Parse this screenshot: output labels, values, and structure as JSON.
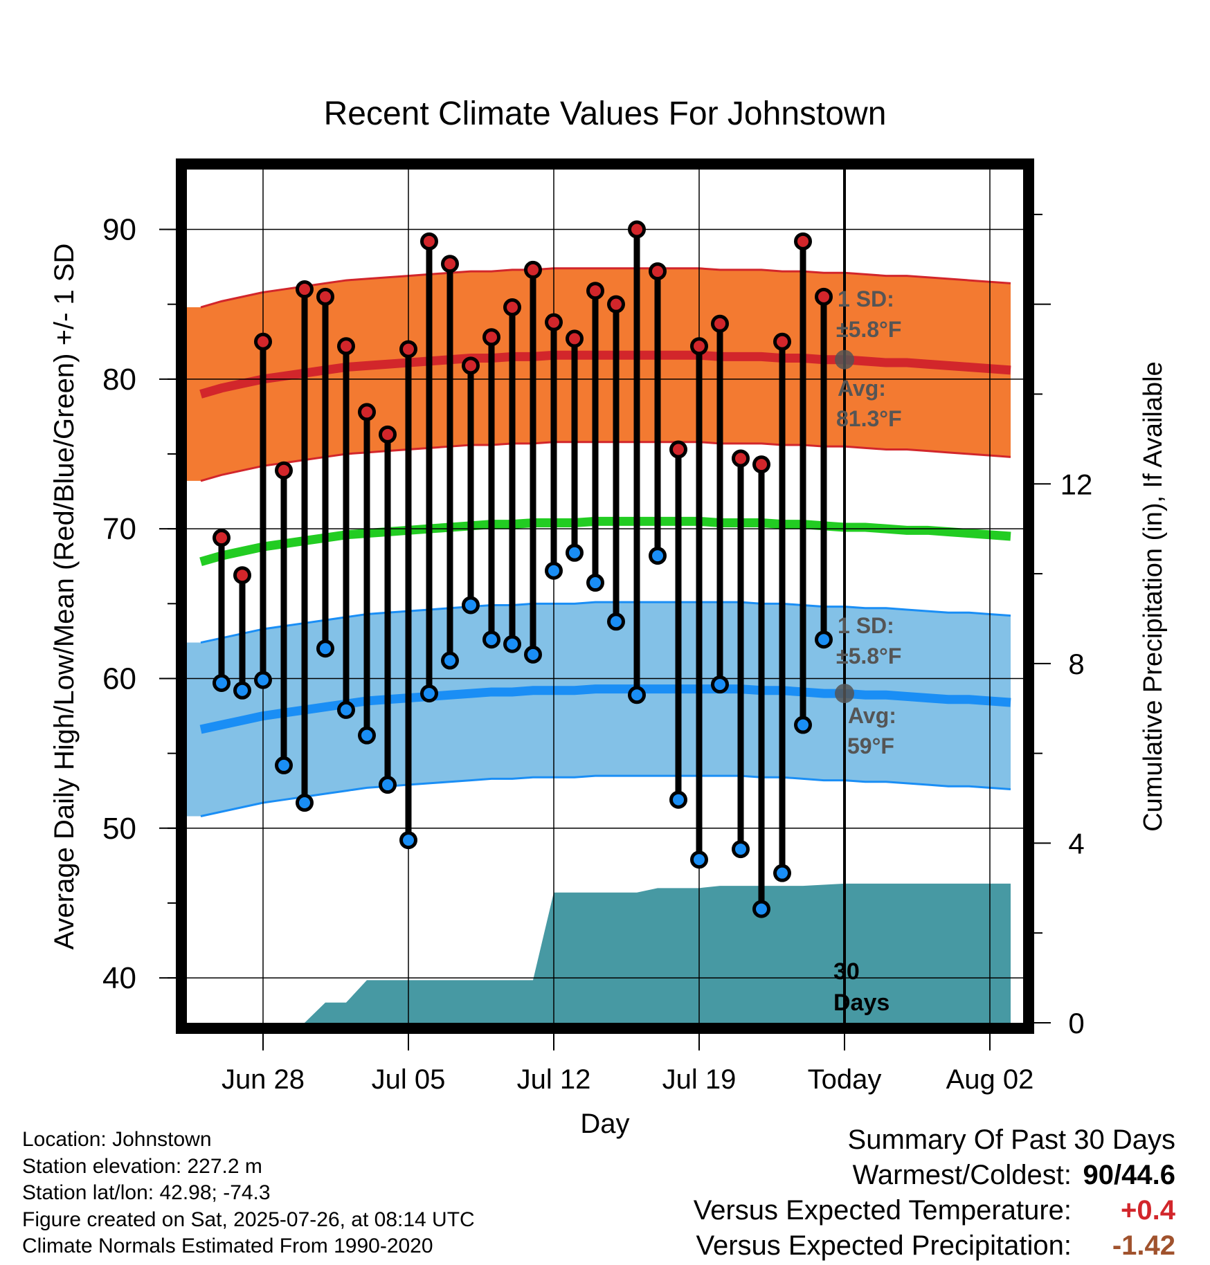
{
  "chart_data": {
    "type": "line",
    "title": "Recent Climate Values For Johnstown",
    "xlabel": "Day",
    "ylabel_left": "Average Daily High/Low/Mean (Red/Blue/Green) +/- 1 SD",
    "ylabel_right": "Cumulative Precipitation (in), If Available",
    "x_tick_labels": [
      "Jun 28",
      "Jul 05",
      "Jul 12",
      "Jul 19",
      "Today",
      "Aug 02"
    ],
    "y_left_ticks": [
      "40",
      "50",
      "60",
      "70",
      "80",
      "90"
    ],
    "y_right_ticks": [
      "0",
      "4",
      "8",
      "12"
    ],
    "ylim": [
      37,
      94
    ],
    "y_right_lim": [
      0,
      19
    ],
    "grid": true,
    "dates": [
      "Jun 25",
      "Jun 26",
      "Jun 27",
      "Jun 28",
      "Jun 29",
      "Jun 30",
      "Jul 01",
      "Jul 02",
      "Jul 03",
      "Jul 04",
      "Jul 05",
      "Jul 06",
      "Jul 07",
      "Jul 08",
      "Jul 09",
      "Jul 10",
      "Jul 11",
      "Jul 12",
      "Jul 13",
      "Jul 14",
      "Jul 15",
      "Jul 16",
      "Jul 17",
      "Jul 18",
      "Jul 19",
      "Jul 20",
      "Jul 21",
      "Jul 22",
      "Jul 23",
      "Jul 24",
      "Jul 25",
      "Jul 26",
      "Jul 27",
      "Jul 28",
      "Jul 29",
      "Jul 30",
      "Jul 31",
      "Aug 01",
      "Aug 02",
      "Aug 03"
    ],
    "observed_days": [
      "Jun 26",
      "Jun 27",
      "Jun 28",
      "Jun 29",
      "Jun 30",
      "Jul 01",
      "Jul 02",
      "Jul 03",
      "Jul 04",
      "Jul 05",
      "Jul 06",
      "Jul 07",
      "Jul 08",
      "Jul 09",
      "Jul 10",
      "Jul 11",
      "Jul 12",
      "Jul 13",
      "Jul 14",
      "Jul 15",
      "Jul 16",
      "Jul 17",
      "Jul 18",
      "Jul 19",
      "Jul 20",
      "Jul 21",
      "Jul 22",
      "Jul 23",
      "Jul 24",
      "Jul 25"
    ],
    "daily_high": [
      69.4,
      66.9,
      82.5,
      73.9,
      86.0,
      85.5,
      82.2,
      77.8,
      76.3,
      82.0,
      89.2,
      87.7,
      80.9,
      82.8,
      84.8,
      87.3,
      83.8,
      82.7,
      85.9,
      85.0,
      90.0,
      87.2,
      75.3,
      82.2,
      83.7,
      74.7,
      74.3,
      82.5,
      89.2,
      85.5
    ],
    "daily_low": [
      59.7,
      59.2,
      59.9,
      54.2,
      51.7,
      62.0,
      57.9,
      56.2,
      52.9,
      49.2,
      59.0,
      61.2,
      64.9,
      62.6,
      62.3,
      61.6,
      67.2,
      68.4,
      66.4,
      63.8,
      58.9,
      68.2,
      51.9,
      47.9,
      59.6,
      48.6,
      44.6,
      47.0,
      56.9,
      62.6
    ],
    "normal_high": [
      79.0,
      79.4,
      79.7,
      80.0,
      80.2,
      80.4,
      80.6,
      80.8,
      80.9,
      81.0,
      81.1,
      81.2,
      81.3,
      81.4,
      81.4,
      81.5,
      81.5,
      81.6,
      81.6,
      81.6,
      81.6,
      81.6,
      81.6,
      81.6,
      81.6,
      81.5,
      81.5,
      81.5,
      81.4,
      81.4,
      81.3,
      81.3,
      81.2,
      81.1,
      81.1,
      81.0,
      80.9,
      80.8,
      80.7,
      80.6
    ],
    "normal_low": [
      56.6,
      56.9,
      57.2,
      57.5,
      57.7,
      57.9,
      58.1,
      58.3,
      58.5,
      58.6,
      58.7,
      58.8,
      58.9,
      59.0,
      59.1,
      59.1,
      59.2,
      59.2,
      59.2,
      59.3,
      59.3,
      59.3,
      59.3,
      59.3,
      59.3,
      59.3,
      59.3,
      59.2,
      59.2,
      59.1,
      59.0,
      59.0,
      58.9,
      58.9,
      58.8,
      58.7,
      58.6,
      58.6,
      58.5,
      58.4
    ],
    "normal_mean": [
      67.8,
      68.2,
      68.5,
      68.8,
      69.0,
      69.2,
      69.4,
      69.6,
      69.7,
      69.8,
      69.9,
      70.0,
      70.1,
      70.2,
      70.3,
      70.3,
      70.4,
      70.4,
      70.4,
      70.5,
      70.5,
      70.5,
      70.5,
      70.5,
      70.5,
      70.4,
      70.4,
      70.4,
      70.3,
      70.3,
      70.2,
      70.1,
      70.1,
      70.0,
      69.9,
      69.9,
      69.8,
      69.7,
      69.6,
      69.5
    ],
    "sd_high": 5.8,
    "sd_low": 5.8,
    "precip_dates": [
      "Jun 28",
      "Jun 30",
      "Jul 01",
      "Jul 02",
      "Jul 03",
      "Jul 11",
      "Jul 12",
      "Jul 16",
      "Jul 17",
      "Jul 19",
      "Jul 20",
      "Jul 24",
      "Jul 26",
      "Aug 03"
    ],
    "precip_cumulative": [
      0.0,
      0.0,
      0.45,
      0.45,
      0.95,
      0.95,
      2.9,
      2.9,
      3.0,
      3.0,
      3.05,
      3.05,
      3.1,
      3.1
    ],
    "annotations": {
      "high_sd": "1 SD:",
      "high_sd_value": "±5.8°F",
      "high_avg": "Avg:",
      "high_avg_value": "81.3°F",
      "low_sd": "1 SD:",
      "low_sd_value": "±5.8°F",
      "low_avg": "Avg:",
      "low_avg_value": "59°F",
      "today_high_value": 81.3,
      "today_low_value": 59.0,
      "days_window_1": "30",
      "days_window_2": "Days"
    },
    "colors": {
      "high_band": "#f37a31",
      "high_line": "#d2262b",
      "low_band": "#83c1e7",
      "low_line": "#1a8ef5",
      "mean_line": "#22cc22",
      "precip": "#4799a3",
      "high_marker": "#d2262b",
      "low_marker": "#1a8ef5",
      "annotation": "#555555"
    }
  },
  "footer": {
    "location": "Location: Johnstown",
    "elevation": "Station elevation: 227.2 m",
    "latlon": "Station lat/lon: 42.98; -74.3",
    "created": "Figure created on Sat, 2025-07-26, at 08:14 UTC",
    "normals": "Climate Normals Estimated From 1990-2020"
  },
  "summary": {
    "heading": "Summary Of Past 30 Days",
    "warmest_label": "Warmest/Coldest:",
    "warmest_value": "90/44.6",
    "temp_label": "Versus Expected Temperature:",
    "temp_value": "+0.4",
    "temp_color": "#d2262b",
    "precip_label": "Versus Expected Precipitation:",
    "precip_value": "-1.42",
    "precip_color": "#a0522d"
  }
}
